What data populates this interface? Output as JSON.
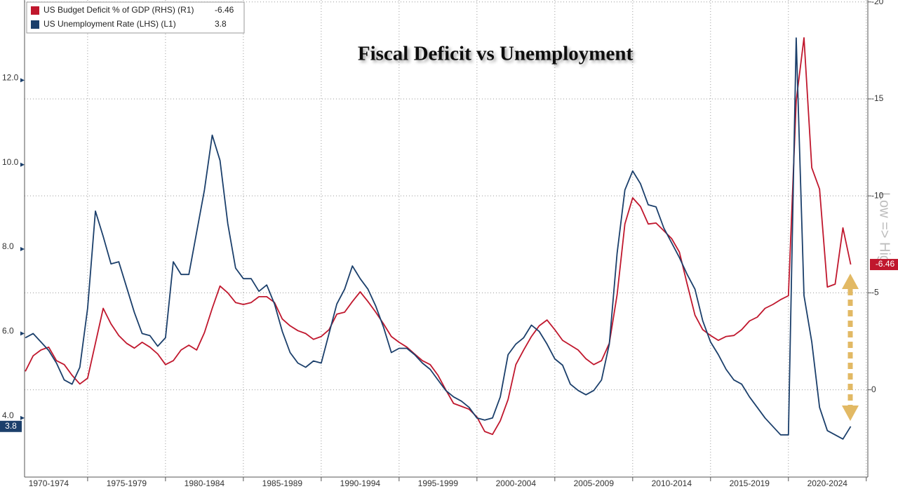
{
  "chart_data": {
    "type": "line",
    "title": "Fiscal Deficit vs Unemployment",
    "annotation": "Low => High",
    "x": [
      1971,
      1971.5,
      1972,
      1972.5,
      1973,
      1973.5,
      1974,
      1974.5,
      1975,
      1975.5,
      1976,
      1976.5,
      1977,
      1977.5,
      1978,
      1978.5,
      1979,
      1979.5,
      1980,
      1980.5,
      1981,
      1981.5,
      1982,
      1982.5,
      1983,
      1983.5,
      1984,
      1984.5,
      1985,
      1985.5,
      1986,
      1986.5,
      1987,
      1987.5,
      1988,
      1988.5,
      1989,
      1989.5,
      1990,
      1990.5,
      1991,
      1991.5,
      1992,
      1992.5,
      1993,
      1993.5,
      1994,
      1994.5,
      1995,
      1995.5,
      1996,
      1996.5,
      1997,
      1997.5,
      1998,
      1998.5,
      1999,
      1999.5,
      2000,
      2000.5,
      2001,
      2001.5,
      2002,
      2002.5,
      2003,
      2003.5,
      2004,
      2004.5,
      2005,
      2005.5,
      2006,
      2006.5,
      2007,
      2007.5,
      2008,
      2008.5,
      2009,
      2009.5,
      2010,
      2010.5,
      2011,
      2011.5,
      2012,
      2012.5,
      2013,
      2013.5,
      2014,
      2014.5,
      2015,
      2015.5,
      2016,
      2016.5,
      2017,
      2017.5,
      2018,
      2018.5,
      2019,
      2019.5,
      2020,
      2020.5,
      2021,
      2021.5,
      2022,
      2022.5,
      2023,
      2023.5,
      2024
    ],
    "series": [
      {
        "name": "US Budget Deficit % of GDP (RHS) (R1)",
        "color": "#c0172d",
        "axis": "y2",
        "values": [
          -0.95,
          -1.75,
          -2.05,
          -2.2,
          -1.5,
          -1.3,
          -0.75,
          -0.3,
          -0.6,
          -2.4,
          -4.2,
          -3.4,
          -2.8,
          -2.4,
          -2.15,
          -2.45,
          -2.2,
          -1.85,
          -1.3,
          -1.5,
          -2.05,
          -2.3,
          -2.05,
          -2.95,
          -4.2,
          -5.35,
          -5.0,
          -4.5,
          -4.4,
          -4.5,
          -4.8,
          -4.8,
          -4.5,
          -3.65,
          -3.3,
          -3.05,
          -2.9,
          -2.6,
          -2.75,
          -3.1,
          -3.9,
          -4.0,
          -4.55,
          -5.05,
          -4.55,
          -4.0,
          -3.4,
          -2.75,
          -2.45,
          -2.2,
          -1.85,
          -1.5,
          -1.3,
          -0.75,
          0,
          0.7,
          0.85,
          1.0,
          1.4,
          2.15,
          2.3,
          1.6,
          0.5,
          -1.3,
          -2.05,
          -2.75,
          -3.3,
          -3.6,
          -3.1,
          -2.55,
          -2.3,
          -2.05,
          -1.6,
          -1.3,
          -1.5,
          -2.4,
          -4.9,
          -8.55,
          -9.9,
          -9.45,
          -8.55,
          -8.6,
          -8.2,
          -7.8,
          -7.1,
          -5.45,
          -3.85,
          -3.1,
          -2.8,
          -2.55,
          -2.75,
          -2.8,
          -3.1,
          -3.55,
          -3.75,
          -4.2,
          -4.4,
          -4.65,
          -4.85,
          -14.9,
          -18.15,
          -11.45,
          -10.35,
          -5.3,
          -5.45,
          -8.35,
          -6.46
        ]
      },
      {
        "name": "US Unemployment Rate (LHS) (L1)",
        "color": "#1b3f6b",
        "axis": "y",
        "values": [
          5.9,
          6.0,
          5.8,
          5.6,
          5.3,
          4.9,
          4.8,
          5.2,
          6.6,
          8.9,
          8.3,
          7.65,
          7.7,
          7.1,
          6.5,
          6.0,
          5.95,
          5.7,
          5.9,
          7.7,
          7.4,
          7.4,
          8.4,
          9.4,
          10.7,
          10.1,
          8.6,
          7.55,
          7.3,
          7.3,
          7.0,
          7.15,
          6.7,
          6.05,
          5.55,
          5.3,
          5.2,
          5.35,
          5.3,
          6.0,
          6.7,
          7.05,
          7.6,
          7.3,
          7.05,
          6.65,
          6.15,
          5.55,
          5.65,
          5.65,
          5.5,
          5.3,
          5.15,
          4.9,
          4.65,
          4.5,
          4.4,
          4.25,
          4.0,
          3.95,
          4.0,
          4.5,
          5.5,
          5.75,
          5.9,
          6.2,
          6.05,
          5.75,
          5.4,
          5.25,
          4.8,
          4.65,
          4.55,
          4.65,
          4.9,
          5.75,
          7.9,
          9.4,
          9.85,
          9.55,
          9.05,
          9.0,
          8.5,
          8.15,
          7.8,
          7.4,
          7.05,
          6.3,
          5.8,
          5.5,
          5.15,
          4.9,
          4.8,
          4.5,
          4.25,
          4.0,
          3.8,
          3.6,
          3.6,
          13.0,
          6.9,
          5.8,
          4.25,
          3.7,
          3.6,
          3.5,
          3.8
        ]
      }
    ],
    "xlim": [
      1970.95,
      2025.1
    ],
    "xticks": [
      1970,
      1975,
      1980,
      1985,
      1990,
      1995,
      2000,
      2005,
      2010,
      2015,
      2020,
      2025
    ],
    "categories": [
      "1970-1974",
      "1975-1979",
      "1980-1984",
      "1985-1989",
      "1990-1994",
      "1995-1999",
      "2000-2004",
      "2005-2009",
      "2010-2014",
      "2015-2019",
      "2020-2024"
    ],
    "ylim": [
      2.6,
      13.9
    ],
    "yticks": [
      {
        "value": 4,
        "label": "4.0"
      },
      {
        "value": 6,
        "label": "6.0"
      },
      {
        "value": 8,
        "label": "8.0"
      },
      {
        "value": 10,
        "label": "10.0"
      },
      {
        "value": 12,
        "label": "12.0"
      }
    ],
    "y2lim": [
      4.5,
      -20.1
    ],
    "y2ticks": [
      -20,
      -15,
      -10,
      -5,
      0
    ],
    "grid": true,
    "legend": "top-left"
  }
}
